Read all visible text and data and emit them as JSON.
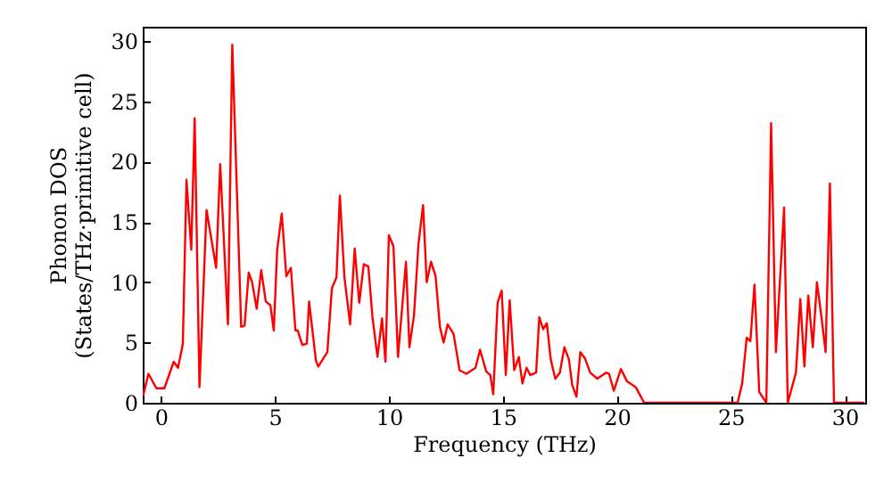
{
  "chart_data": {
    "type": "line",
    "xlabel": "Frequency (THz)",
    "ylabel": "Phonon DOS\n(States/THz·primitive cell)",
    "xlim": [
      -0.8,
      30.9
    ],
    "ylim": [
      0,
      31.2
    ],
    "xticks": [
      0,
      5,
      10,
      15,
      20,
      25,
      30
    ],
    "yticks": [
      0,
      5,
      10,
      15,
      20,
      25,
      30
    ],
    "grid": false,
    "x": [
      -0.78,
      -0.55,
      -0.2,
      0.15,
      0.56,
      0.75,
      0.96,
      1.12,
      1.33,
      1.48,
      1.69,
      2.0,
      2.42,
      2.6,
      2.94,
      3.13,
      3.52,
      3.67,
      3.85,
      4.0,
      4.2,
      4.4,
      4.6,
      4.8,
      4.95,
      5.1,
      5.3,
      5.5,
      5.7,
      5.9,
      6.0,
      6.2,
      6.4,
      6.5,
      6.8,
      6.9,
      7.3,
      7.5,
      7.7,
      7.85,
      8.05,
      8.3,
      8.5,
      8.7,
      8.9,
      9.1,
      9.28,
      9.5,
      9.7,
      9.85,
      10.0,
      10.2,
      10.4,
      10.75,
      10.9,
      11.1,
      11.3,
      11.5,
      11.66,
      11.85,
      12.05,
      12.24,
      12.4,
      12.58,
      12.84,
      13.1,
      13.4,
      13.8,
      14.0,
      14.27,
      14.45,
      14.58,
      14.77,
      14.95,
      15.13,
      15.3,
      15.5,
      15.7,
      15.86,
      16.04,
      16.2,
      16.46,
      16.6,
      16.77,
      16.93,
      17.1,
      17.3,
      17.5,
      17.7,
      17.9,
      18.04,
      18.23,
      18.4,
      18.6,
      18.83,
      19.14,
      19.53,
      19.66,
      19.87,
      20.18,
      20.44,
      20.83,
      21.2,
      25.3,
      25.5,
      25.7,
      25.86,
      26.04,
      26.25,
      26.56,
      26.77,
      26.98,
      27.34,
      27.5,
      27.86,
      28.05,
      28.23,
      28.4,
      28.6,
      28.78,
      28.98,
      29.16,
      29.35,
      29.53,
      30.85
    ],
    "series": [
      {
        "color": "#ff0000",
        "values": [
          0.6,
          2.4,
          1.2,
          1.2,
          3.4,
          2.9,
          4.9,
          18.5,
          12.7,
          23.6,
          1.3,
          16,
          11.2,
          19.8,
          6.5,
          29.7,
          6.3,
          6.4,
          10.8,
          10,
          7.8,
          11,
          8.4,
          8.1,
          6.0,
          12.7,
          15.7,
          10.5,
          11.2,
          6.0,
          6.0,
          4.8,
          4.9,
          8.4,
          3.5,
          3.0,
          4.2,
          9.5,
          10.4,
          17.2,
          10.4,
          6.5,
          12.8,
          8.3,
          11.5,
          11.3,
          7.1,
          3.8,
          7.0,
          3.4,
          13.9,
          13,
          3.8,
          11.7,
          4.6,
          7.2,
          13.2,
          16.4,
          10,
          11.7,
          10.5,
          6.3,
          5,
          6.5,
          5.7,
          2.7,
          2.4,
          2.9,
          4.4,
          2.6,
          2.3,
          0.7,
          8.3,
          9.3,
          2.3,
          8.5,
          2.7,
          3.8,
          1.6,
          2.9,
          2.3,
          2.5,
          7.1,
          6.1,
          6.6,
          3.6,
          2.0,
          2.5,
          4.6,
          3.6,
          1.5,
          0.5,
          4.2,
          3.7,
          2.5,
          2.0,
          2.5,
          2.4,
          1.0,
          2.8,
          1.8,
          1.3,
          0,
          0,
          1.6,
          5.4,
          5.1,
          9.8,
          0.9,
          0,
          23.2,
          4.2,
          16.2,
          0,
          2.5,
          8.6,
          3.0,
          8.9,
          4.6,
          10.0,
          7.1,
          4.2,
          18.2,
          0,
          0
        ]
      }
    ]
  }
}
